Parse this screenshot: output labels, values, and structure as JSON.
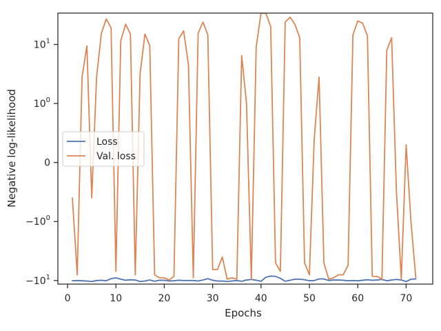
{
  "chart_data": {
    "type": "line",
    "xlabel": "Epochs",
    "ylabel": "Negative log-likelihood",
    "yscale": "symlog",
    "xlim": [
      -2,
      75.5
    ],
    "ylim": [
      -11.5,
      34
    ],
    "x_ticks": [
      0,
      10,
      20,
      30,
      40,
      50,
      60,
      70
    ],
    "y_ticks": [
      {
        "value": -10,
        "base": "−10",
        "exp": "1"
      },
      {
        "value": -1,
        "base": "−10",
        "exp": "0"
      },
      {
        "value": 0,
        "base": "0",
        "exp": ""
      },
      {
        "value": 1,
        "base": "10",
        "exp": "0"
      },
      {
        "value": 10,
        "base": "10",
        "exp": "1"
      }
    ],
    "legend": {
      "position": "center-left"
    },
    "grid": false,
    "series": [
      {
        "name": "Loss",
        "color": "#4c72b0",
        "x": [
          1,
          2,
          3,
          4,
          5,
          6,
          7,
          8,
          9,
          10,
          11,
          12,
          13,
          14,
          15,
          16,
          17,
          18,
          19,
          20,
          21,
          22,
          23,
          24,
          25,
          26,
          27,
          28,
          29,
          30,
          31,
          32,
          33,
          34,
          35,
          36,
          37,
          38,
          39,
          40,
          41,
          42,
          43,
          44,
          45,
          46,
          47,
          48,
          49,
          50,
          51,
          52,
          53,
          54,
          55,
          56,
          57,
          58,
          59,
          60,
          61,
          62,
          63,
          64,
          65,
          66,
          67,
          68,
          69,
          70,
          71,
          72
        ],
        "values": [
          -10.1,
          -10.0,
          -10.1,
          -10.2,
          -10.4,
          -10.0,
          -9.9,
          -10.1,
          -9.3,
          -9.0,
          -9.5,
          -9.9,
          -9.7,
          -9.8,
          -10.4,
          -10.2,
          -9.8,
          -10.3,
          -9.9,
          -9.9,
          -10.2,
          -10.1,
          -9.9,
          -10.0,
          -10.0,
          -10.0,
          -10.2,
          -9.8,
          -9.3,
          -9.9,
          -10.2,
          -10.2,
          -10.4,
          -10.2,
          -10.0,
          -10.3,
          -9.8,
          -9.6,
          -9.9,
          -10.3,
          -8.8,
          -8.4,
          -8.5,
          -9.2,
          -10.3,
          -9.9,
          -9.5,
          -9.5,
          -9.7,
          -10.1,
          -10.0,
          -9.4,
          -9.4,
          -10.0,
          -9.8,
          -9.8,
          -9.9,
          -10.1,
          -10.0,
          -10.1,
          -9.9,
          -9.7,
          -9.9,
          -9.8,
          -9.6,
          -10.1,
          -9.8,
          -9.6,
          -9.8,
          -10.4,
          -9.5,
          -9.4
        ]
      },
      {
        "name": "Val. loss",
        "color": "#dd8452",
        "x": [
          1,
          2,
          3,
          4,
          5,
          6,
          7,
          8,
          9,
          10,
          11,
          12,
          13,
          14,
          15,
          16,
          17,
          18,
          19,
          20,
          21,
          22,
          23,
          24,
          25,
          26,
          27,
          28,
          29,
          30,
          31,
          32,
          33,
          34,
          35,
          36,
          37,
          38,
          39,
          40,
          41,
          42,
          43,
          44,
          45,
          46,
          47,
          48,
          49,
          50,
          51,
          52,
          53,
          54,
          55,
          56,
          57,
          58,
          59,
          60,
          61,
          62,
          63,
          64,
          65,
          66,
          67,
          68,
          69,
          70,
          71,
          72
        ],
        "values": [
          -0.6,
          -8.0,
          2.8,
          9.5,
          -0.6,
          2.8,
          15.5,
          27.0,
          19.0,
          -7.0,
          11.5,
          22.0,
          15.0,
          -8.0,
          3.2,
          15.0,
          9.5,
          -8.0,
          -9.0,
          -9.0,
          -9.8,
          -8.5,
          12.5,
          17.0,
          4.5,
          -9.0,
          15.5,
          24.0,
          14.5,
          -6.5,
          -6.5,
          -4.0,
          -9.5,
          -9.0,
          -9.5,
          6.5,
          1.0,
          -9.5,
          9.0,
          34.0,
          34.0,
          20.0,
          -5.0,
          -7.0,
          24.0,
          29.0,
          22.0,
          13.0,
          -5.0,
          -8.0,
          0.4,
          2.8,
          -5.0,
          -9.5,
          -9.0,
          -8.0,
          -8.0,
          -5.5,
          14.5,
          25.0,
          23.0,
          14.0,
          -8.5,
          -8.5,
          -9.5,
          8.0,
          13.0,
          -0.5,
          -9.5,
          0.3,
          -1.0,
          -9.0
        ]
      }
    ]
  }
}
